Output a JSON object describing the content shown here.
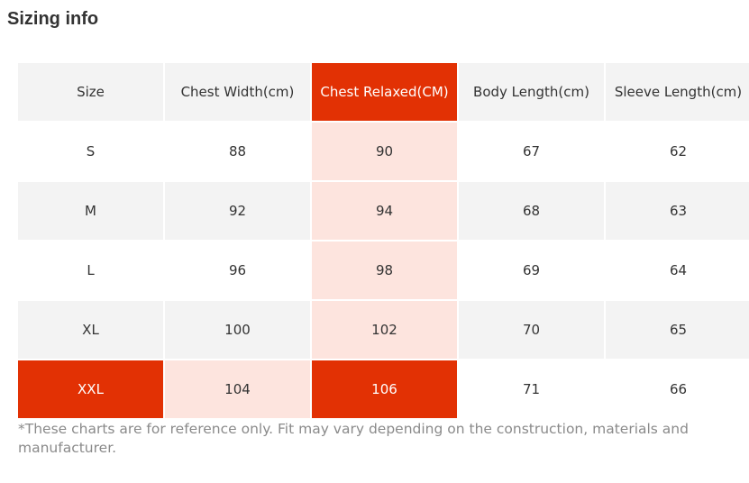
{
  "title": "Sizing info",
  "table": {
    "header": [
      "Size",
      "Chest Width(cm)",
      "Chest Relaxed(CM)",
      "Body Length(cm)",
      "Sleeve Length(cm)"
    ],
    "rows": [
      [
        "S",
        88,
        90,
        67,
        62
      ],
      [
        "M",
        92,
        94,
        68,
        63
      ],
      [
        "L",
        96,
        98,
        69,
        64
      ],
      [
        "XL",
        100,
        102,
        70,
        65
      ],
      [
        "XXL",
        104,
        106,
        71,
        66
      ]
    ]
  },
  "footnote": "*These charts are for reference only. Fit may vary depending on the construction, materials and manufacturer."
}
